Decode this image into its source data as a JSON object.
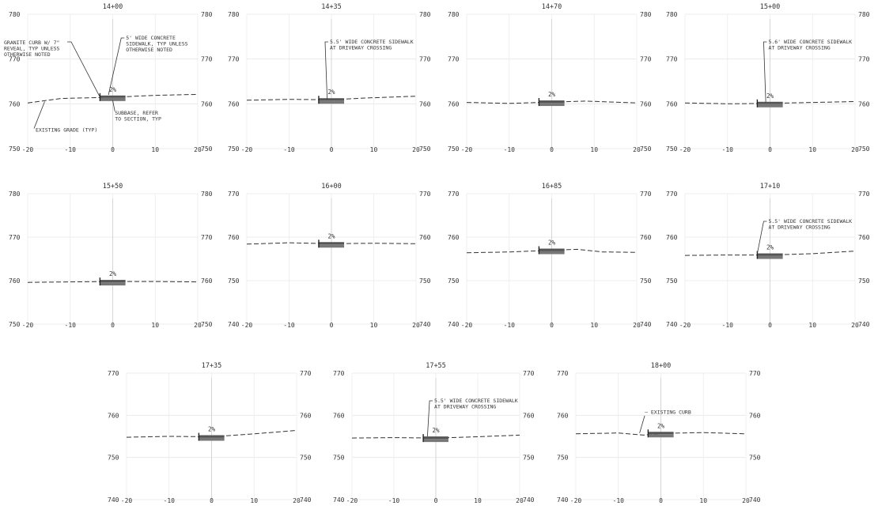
{
  "sheet": {
    "title": "",
    "panels": [
      {
        "station": "14+00",
        "y_range": [
          750,
          780
        ],
        "y_ticks": [
          {
            "left": "780",
            "right": "780"
          },
          {
            "left": "770",
            "right": "770"
          },
          {
            "left": "760",
            "right": "760"
          },
          {
            "left": "750",
            "right": "750"
          }
        ],
        "x_ticks": [
          "-20",
          "-10",
          "0",
          "10",
          "20"
        ],
        "existing_grade": [
          [
            -20,
            760.2
          ],
          [
            -12,
            761.2
          ],
          [
            -3,
            761.4
          ],
          [
            3,
            761.6
          ],
          [
            10,
            761.9
          ],
          [
            20,
            762.1
          ]
        ],
        "slope_label": "2%",
        "notes": [
          {
            "text": "GRANITE CURB W/ 7\" REVEAL, TYP UNLESS OTHERWISE NOTED",
            "anchor": "upper-left",
            "leader_to": [
              -3,
              761.5
            ]
          },
          {
            "text": "5' WIDE CONCRETE SIDEWALK, TYP UNLESS OTHERWISE NOTED",
            "anchor": "upper-right",
            "leader_to": [
              -1,
              762
            ]
          },
          {
            "text": "SUBBASE, REFER TO SECTION, TYP",
            "anchor": "lower-right",
            "leader_to": [
              0,
              760.8
            ]
          },
          {
            "text": "EXISTING GRADE (TYP)",
            "anchor": "lower-left",
            "leader_to": [
              -16,
              760.5
            ]
          }
        ]
      },
      {
        "station": "14+35",
        "y_range": [
          750,
          780
        ],
        "y_ticks": [
          {
            "left": "780",
            "right": "780"
          },
          {
            "left": "770",
            "right": "770"
          },
          {
            "left": "760",
            "right": "760"
          },
          {
            "left": "750",
            "right": "750"
          }
        ],
        "x_ticks": [
          "-20",
          "-10",
          "0",
          "10",
          "20"
        ],
        "existing_grade": [
          [
            -20,
            760.8
          ],
          [
            -10,
            761.0
          ],
          [
            0,
            760.9
          ],
          [
            8,
            761.3
          ],
          [
            20,
            761.7
          ]
        ],
        "slope_label": "2%",
        "notes": [
          {
            "text": "5.5' WIDE CONCRETE SIDEWALK AT DRIVEWAY CROSSING",
            "anchor": "upper-right",
            "leader_to": [
              -1,
              761
            ]
          }
        ]
      },
      {
        "station": "14+70",
        "y_range": [
          750,
          780
        ],
        "y_ticks": [
          {
            "left": "780",
            "right": "780"
          },
          {
            "left": "770",
            "right": "770"
          },
          {
            "left": "760",
            "right": "760"
          },
          {
            "left": "750",
            "right": "750"
          }
        ],
        "x_ticks": [
          "-20",
          "-10",
          "0",
          "10",
          "20"
        ],
        "existing_grade": [
          [
            -20,
            760.3
          ],
          [
            -10,
            760.1
          ],
          [
            0,
            760.4
          ],
          [
            8,
            760.6
          ],
          [
            20,
            760.2
          ]
        ],
        "slope_label": "2%",
        "notes": []
      },
      {
        "station": "15+00",
        "y_range": [
          750,
          780
        ],
        "y_ticks": [
          {
            "left": "780",
            "right": "780"
          },
          {
            "left": "770",
            "right": "770"
          },
          {
            "left": "760",
            "right": "760"
          },
          {
            "left": "750",
            "right": "750"
          }
        ],
        "x_ticks": [
          "-20",
          "-10",
          "0",
          "10",
          "20"
        ],
        "existing_grade": [
          [
            -20,
            760.2
          ],
          [
            -10,
            760.0
          ],
          [
            0,
            760.1
          ],
          [
            10,
            760.3
          ],
          [
            20,
            760.5
          ]
        ],
        "slope_label": "2%",
        "notes": [
          {
            "text": "5.6' WIDE CONCRETE SIDEWALK AT DRIVEWAY CROSSING",
            "anchor": "upper-right",
            "leader_to": [
              -1,
              760.4
            ]
          }
        ]
      },
      {
        "station": "15+50",
        "y_range": [
          750,
          780
        ],
        "y_ticks": [
          {
            "left": "780",
            "right": "780"
          },
          {
            "left": "770",
            "right": "770"
          },
          {
            "left": "760",
            "right": "760"
          },
          {
            "left": "750",
            "right": "750"
          }
        ],
        "x_ticks": [
          "-20",
          "-10",
          "0",
          "10",
          "20"
        ],
        "existing_grade": [
          [
            -20,
            759.6
          ],
          [
            -10,
            759.7
          ],
          [
            0,
            759.8
          ],
          [
            10,
            759.8
          ],
          [
            20,
            759.7
          ]
        ],
        "slope_label": "2%",
        "notes": []
      },
      {
        "station": "16+00",
        "y_range": [
          740,
          770
        ],
        "y_ticks": [
          {
            "left": "770",
            "right": "770"
          },
          {
            "left": "760",
            "right": "760"
          },
          {
            "left": "750",
            "right": "750"
          },
          {
            "left": "740",
            "right": "740"
          }
        ],
        "x_ticks": [
          "-20",
          "-10",
          "0",
          "10",
          "20"
        ],
        "existing_grade": [
          [
            -20,
            758.4
          ],
          [
            -10,
            758.7
          ],
          [
            0,
            758.5
          ],
          [
            10,
            758.6
          ],
          [
            20,
            758.5
          ]
        ],
        "slope_label": "2%",
        "notes": []
      },
      {
        "station": "16+85",
        "y_range": [
          740,
          770
        ],
        "y_ticks": [
          {
            "left": "770",
            "right": "770"
          },
          {
            "left": "760",
            "right": "760"
          },
          {
            "left": "750",
            "right": "750"
          },
          {
            "left": "740",
            "right": "740"
          }
        ],
        "x_ticks": [
          "-20",
          "-10",
          "0",
          "10",
          "20"
        ],
        "existing_grade": [
          [
            -20,
            756.4
          ],
          [
            -10,
            756.6
          ],
          [
            0,
            757.0
          ],
          [
            6,
            757.2
          ],
          [
            12,
            756.6
          ],
          [
            20,
            756.5
          ]
        ],
        "slope_label": "2%",
        "notes": []
      },
      {
        "station": "17+10",
        "y_range": [
          740,
          770
        ],
        "y_ticks": [
          {
            "left": "770",
            "right": "770"
          },
          {
            "left": "760",
            "right": "760"
          },
          {
            "left": "750",
            "right": "750"
          },
          {
            "left": "740",
            "right": "740"
          }
        ],
        "x_ticks": [
          "-20",
          "-10",
          "0",
          "10",
          "20"
        ],
        "existing_grade": [
          [
            -20,
            755.8
          ],
          [
            -10,
            755.9
          ],
          [
            0,
            755.9
          ],
          [
            10,
            756.2
          ],
          [
            20,
            756.8
          ]
        ],
        "slope_label": "2%",
        "notes": [
          {
            "text": "5.5' WIDE CONCRETE SIDEWALK AT DRIVEWAY CROSSING",
            "anchor": "upper-right",
            "leader_to": [
              -3,
              756.2
            ]
          }
        ]
      },
      {
        "station": "17+35",
        "y_range": [
          740,
          770
        ],
        "y_ticks": [
          {
            "left": "770",
            "right": "770"
          },
          {
            "left": "760",
            "right": "760"
          },
          {
            "left": "750",
            "right": "750"
          },
          {
            "left": "740",
            "right": "740"
          }
        ],
        "x_ticks": [
          "-20",
          "-10",
          "0",
          "10",
          "20"
        ],
        "existing_grade": [
          [
            -20,
            754.8
          ],
          [
            -10,
            755.0
          ],
          [
            0,
            754.9
          ],
          [
            10,
            755.6
          ],
          [
            20,
            756.4
          ]
        ],
        "slope_label": "2%",
        "notes": []
      },
      {
        "station": "17+55",
        "y_range": [
          740,
          770
        ],
        "y_ticks": [
          {
            "left": "770",
            "right": "770"
          },
          {
            "left": "760",
            "right": "760"
          },
          {
            "left": "750",
            "right": "750"
          },
          {
            "left": "740",
            "right": "740"
          }
        ],
        "x_ticks": [
          "-20",
          "-10",
          "0",
          "10",
          "20"
        ],
        "existing_grade": [
          [
            -20,
            754.6
          ],
          [
            -10,
            754.7
          ],
          [
            0,
            754.6
          ],
          [
            10,
            754.9
          ],
          [
            20,
            755.3
          ]
        ],
        "slope_label": "2%",
        "notes": [
          {
            "text": "5.5' WIDE CONCRETE SIDEWALK AT DRIVEWAY CROSSING",
            "anchor": "upper-right",
            "leader_to": [
              -2,
              755
            ]
          }
        ]
      },
      {
        "station": "18+00",
        "y_range": [
          740,
          770
        ],
        "y_ticks": [
          {
            "left": "770",
            "right": "770"
          },
          {
            "left": "760",
            "right": "760"
          },
          {
            "left": "750",
            "right": "750"
          },
          {
            "left": "740",
            "right": "740"
          }
        ],
        "x_ticks": [
          "-20",
          "-10",
          "0",
          "10",
          "20"
        ],
        "existing_grade": [
          [
            -20,
            755.6
          ],
          [
            -10,
            755.8
          ],
          [
            -4,
            755.3
          ],
          [
            0,
            755.7
          ],
          [
            10,
            755.9
          ],
          [
            20,
            755.6
          ]
        ],
        "slope_label": "2%",
        "notes": [
          {
            "text": "EXISTING CURB",
            "anchor": "upper-left-small",
            "leader_to": [
              -5,
              755.8
            ]
          }
        ]
      }
    ]
  }
}
